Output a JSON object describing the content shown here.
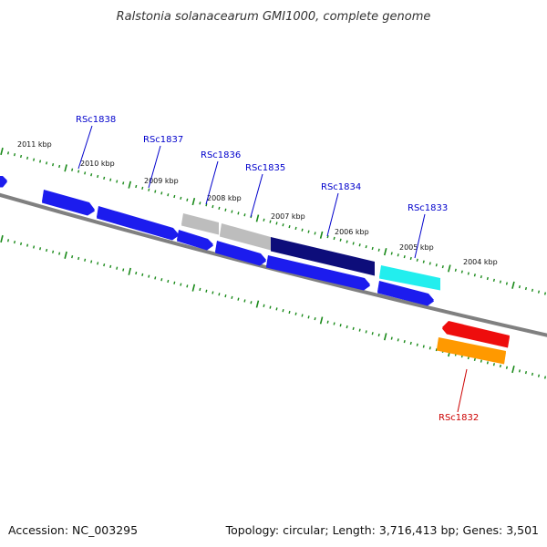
{
  "title": "Ralstonia solanacearum GMI1000, complete genome",
  "accession": "Accession: NC_003295",
  "topology": "Topology: circular; Length: 3,716,413 bp; Genes: 3,501",
  "kbp_labels": [
    "2011 kbp",
    "2010 kbp",
    "2009 kbp",
    "2008 kbp",
    "2007 kbp",
    "2006 kbp",
    "2005 kbp",
    "2004 kbp"
  ],
  "gene_labels": [
    {
      "name": "RSc1838",
      "color": "#0000cc"
    },
    {
      "name": "RSc1837",
      "color": "#0000cc"
    },
    {
      "name": "RSc1836",
      "color": "#0000cc"
    },
    {
      "name": "RSc1835",
      "color": "#0000cc"
    },
    {
      "name": "RSc1834",
      "color": "#0000cc"
    },
    {
      "name": "RSc1833",
      "color": "#0000cc"
    },
    {
      "name": "RSc1832",
      "color": "#cc0000"
    }
  ],
  "colors": {
    "backbone": "#808080",
    "tick": "#1a8a1a",
    "blue": "#1a1aee",
    "navy": "#0a0a7a",
    "gray": "#c0c0c0",
    "cyan": "#22eeee",
    "red": "#ee1111",
    "orange": "#ff9900"
  }
}
